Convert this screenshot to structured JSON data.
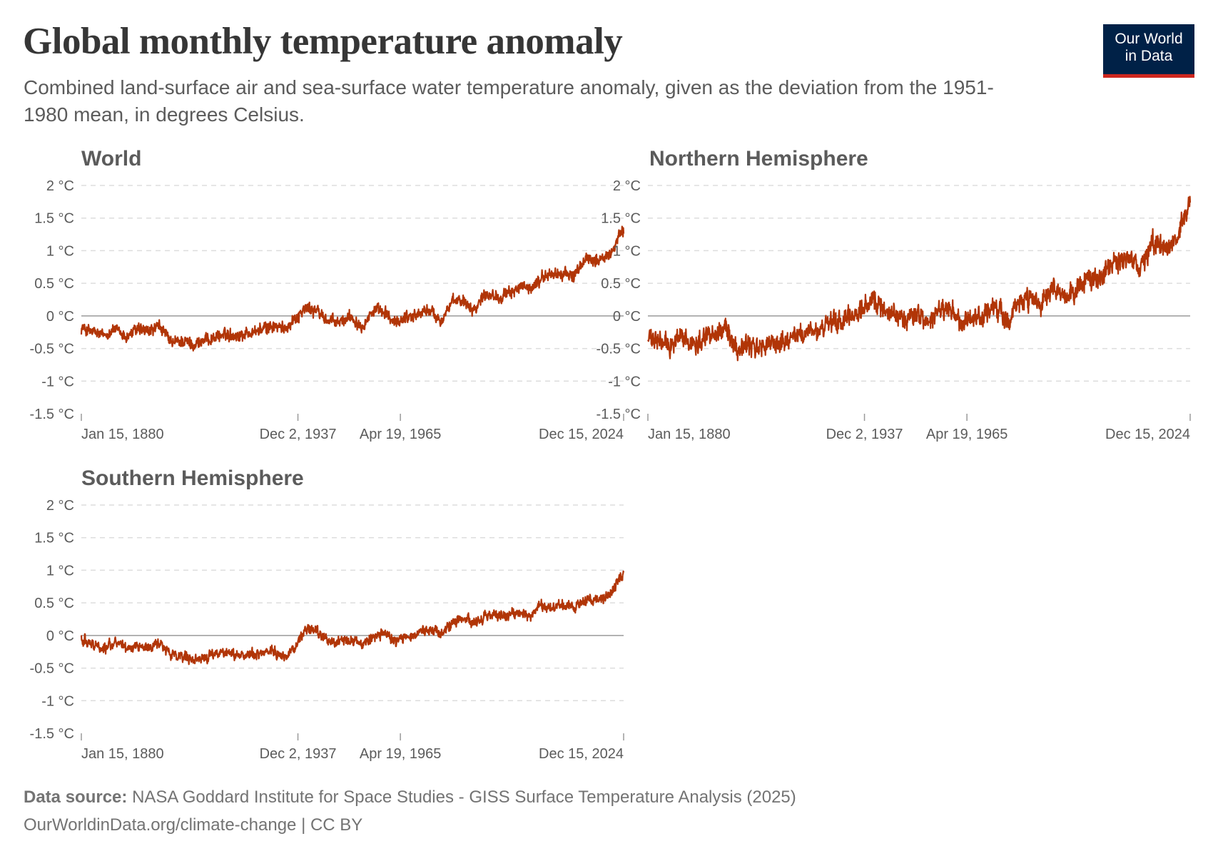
{
  "header": {
    "title": "Global monthly temperature anomaly",
    "subtitle": "Combined land-surface air and sea-surface water temperature anomaly, given as the deviation from the 1951-1980 mean, in degrees Celsius."
  },
  "logo": {
    "line1": "Our World",
    "line2": "in Data",
    "bg_color": "#002147",
    "accent_color": "#ce261e"
  },
  "footer": {
    "source_label": "Data source:",
    "source_text": "NASA Goddard Institute for Space Studies - GISS Surface Temperature Analysis (2025)",
    "url_license": "OurWorldinData.org/climate-change | CC BY"
  },
  "colors": {
    "series": "#b13507",
    "grid": "#dddddd",
    "zero_line": "#9a9a9a",
    "tick_text": "#5b5b5b",
    "panel_title": "#5b5b5b"
  },
  "chart_data": [
    {
      "type": "line",
      "title": "World",
      "ylim": [
        -1.5,
        2
      ],
      "yticks": [
        2,
        1.5,
        1,
        0.5,
        0,
        -0.5,
        -1,
        -1.5
      ],
      "ytick_labels": [
        "2 °C",
        "1.5 °C",
        "1 °C",
        "0.5 °C",
        "0 °C",
        "-0.5 °C",
        "-1 °C",
        "-1.5 °C"
      ],
      "xlim": [
        1880.04,
        2024.96
      ],
      "xticks": [
        1880.04,
        1937.92,
        1965.3,
        2024.96
      ],
      "xtick_labels": [
        "Jan 15, 1880",
        "Dec 2, 1937",
        "Apr 19, 1965",
        "Dec 15, 2024"
      ],
      "grid": true,
      "series": [
        {
          "x": [
            1880,
            1883,
            1886,
            1889,
            1892,
            1895,
            1898,
            1901,
            1904,
            1907,
            1910,
            1913,
            1916,
            1919,
            1922,
            1925,
            1928,
            1931,
            1934,
            1937,
            1940,
            1943,
            1946,
            1949,
            1952,
            1955,
            1958,
            1961,
            1964,
            1967,
            1970,
            1973,
            1976,
            1979,
            1982,
            1985,
            1988,
            1991,
            1994,
            1997,
            2000,
            2003,
            2006,
            2009,
            2012,
            2015,
            2018,
            2021,
            2023,
            2024.9
          ],
          "y": [
            -0.18,
            -0.25,
            -0.3,
            -0.2,
            -0.33,
            -0.2,
            -0.25,
            -0.15,
            -0.42,
            -0.38,
            -0.44,
            -0.38,
            -0.32,
            -0.28,
            -0.3,
            -0.25,
            -0.22,
            -0.15,
            -0.2,
            -0.05,
            0.12,
            0.08,
            -0.08,
            -0.1,
            0.0,
            -0.15,
            0.08,
            0.05,
            -0.12,
            0.0,
            0.02,
            0.1,
            -0.08,
            0.2,
            0.25,
            0.1,
            0.35,
            0.3,
            0.32,
            0.45,
            0.4,
            0.58,
            0.65,
            0.64,
            0.62,
            0.9,
            0.85,
            0.9,
            1.15,
            1.3
          ]
        }
      ]
    },
    {
      "type": "line",
      "title": "Northern Hemisphere",
      "ylim": [
        -1.5,
        2
      ],
      "yticks": [
        2,
        1.5,
        1,
        0.5,
        0,
        -0.5,
        -1,
        -1.5
      ],
      "ytick_labels": [
        "2 °C",
        "1.5 °C",
        "1 °C",
        "0.5 °C",
        "0 °C",
        "-0.5 °C",
        "-1 °C",
        "-1.5 °C"
      ],
      "xlim": [
        1880.04,
        2024.96
      ],
      "xticks": [
        1880.04,
        1937.92,
        1965.3,
        2024.96
      ],
      "xtick_labels": [
        "Jan 15, 1880",
        "Dec 2, 1937",
        "Apr 19, 1965",
        "Dec 15, 2024"
      ],
      "grid": true,
      "series": [
        {
          "x": [
            1880,
            1883,
            1886,
            1889,
            1892,
            1895,
            1898,
            1901,
            1904,
            1907,
            1910,
            1913,
            1916,
            1919,
            1922,
            1925,
            1928,
            1931,
            1934,
            1937,
            1940,
            1943,
            1946,
            1949,
            1952,
            1955,
            1958,
            1961,
            1964,
            1967,
            1970,
            1973,
            1976,
            1979,
            1982,
            1985,
            1988,
            1991,
            1994,
            1997,
            2000,
            2003,
            2006,
            2009,
            2012,
            2015,
            2018,
            2021,
            2023,
            2024.9
          ],
          "y": [
            -0.35,
            -0.4,
            -0.45,
            -0.3,
            -0.45,
            -0.3,
            -0.25,
            -0.2,
            -0.5,
            -0.45,
            -0.5,
            -0.42,
            -0.4,
            -0.3,
            -0.28,
            -0.25,
            -0.15,
            -0.1,
            -0.05,
            0.1,
            0.2,
            0.15,
            0.0,
            -0.05,
            0.05,
            -0.15,
            0.1,
            0.08,
            -0.15,
            -0.05,
            0.0,
            0.15,
            -0.1,
            0.2,
            0.25,
            0.15,
            0.38,
            0.3,
            0.35,
            0.55,
            0.55,
            0.75,
            0.85,
            0.8,
            0.82,
            1.1,
            1.05,
            1.15,
            1.45,
            1.75
          ]
        }
      ]
    },
    {
      "type": "line",
      "title": "Southern Hemisphere",
      "ylim": [
        -1.5,
        2
      ],
      "yticks": [
        2,
        1.5,
        1,
        0.5,
        0,
        -0.5,
        -1,
        -1.5
      ],
      "ytick_labels": [
        "2 °C",
        "1.5 °C",
        "1 °C",
        "0.5 °C",
        "0 °C",
        "-0.5 °C",
        "-1 °C",
        "-1.5 °C"
      ],
      "xlim": [
        1880.04,
        2024.96
      ],
      "xticks": [
        1880.04,
        1937.92,
        1965.3,
        2024.96
      ],
      "xtick_labels": [
        "Jan 15, 1880",
        "Dec 2, 1937",
        "Apr 19, 1965",
        "Dec 15, 2024"
      ],
      "grid": true,
      "series": [
        {
          "x": [
            1880,
            1883,
            1886,
            1889,
            1892,
            1895,
            1898,
            1901,
            1904,
            1907,
            1910,
            1913,
            1916,
            1919,
            1922,
            1925,
            1928,
            1931,
            1934,
            1937,
            1940,
            1943,
            1946,
            1949,
            1952,
            1955,
            1958,
            1961,
            1964,
            1967,
            1970,
            1973,
            1976,
            1979,
            1982,
            1985,
            1988,
            1991,
            1994,
            1997,
            2000,
            2003,
            2006,
            2009,
            2012,
            2015,
            2018,
            2021,
            2023,
            2024.9
          ],
          "y": [
            -0.05,
            -0.12,
            -0.2,
            -0.1,
            -0.2,
            -0.15,
            -0.2,
            -0.1,
            -0.3,
            -0.32,
            -0.4,
            -0.35,
            -0.28,
            -0.25,
            -0.3,
            -0.28,
            -0.3,
            -0.22,
            -0.32,
            -0.2,
            0.1,
            0.05,
            -0.1,
            -0.1,
            -0.05,
            -0.15,
            0.0,
            0.02,
            -0.1,
            0.0,
            0.05,
            0.1,
            0.0,
            0.2,
            0.25,
            0.2,
            0.3,
            0.3,
            0.3,
            0.35,
            0.3,
            0.45,
            0.42,
            0.45,
            0.45,
            0.55,
            0.55,
            0.6,
            0.8,
            0.95
          ]
        }
      ]
    }
  ]
}
